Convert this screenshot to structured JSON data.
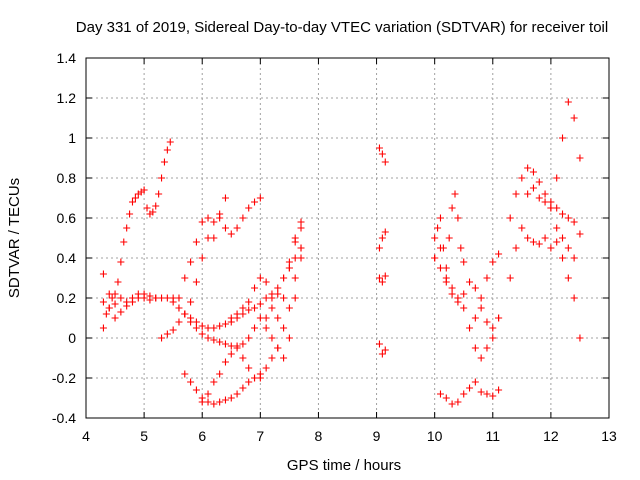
{
  "chart_data": {
    "type": "scatter",
    "title": "Day 331 of 2019, Sidereal Day-to-day VTEC variation (SDTVAR) for receiver toil",
    "xlabel": "GPS time / hours",
    "ylabel": "SDTVAR / TECUs",
    "xlim": [
      4,
      13
    ],
    "ylim": [
      -0.4,
      1.4
    ],
    "xticks": [
      "4",
      "5",
      "6",
      "7",
      "8",
      "9",
      "10",
      "11",
      "12",
      "13"
    ],
    "yticks": [
      "-0.4",
      "-0.2",
      "0",
      "0.2",
      "0.4",
      "0.6",
      "0.8",
      "1",
      "1.2",
      "1.4"
    ],
    "grid": true,
    "marker": "plus",
    "color": "#ff0000",
    "series": [
      {
        "x": [
          4.3,
          4.35,
          4.4,
          4.45,
          4.5,
          4.55,
          4.6,
          4.65,
          4.7,
          4.75,
          4.8,
          4.85,
          4.9,
          4.95,
          5.0,
          5.05,
          5.1,
          5.15,
          5.2,
          5.25,
          5.3,
          5.35,
          5.4,
          5.45
        ],
        "y": [
          0.05,
          0.12,
          0.15,
          0.2,
          0.22,
          0.28,
          0.38,
          0.48,
          0.55,
          0.62,
          0.68,
          0.7,
          0.72,
          0.73,
          0.74,
          0.65,
          0.62,
          0.63,
          0.66,
          0.72,
          0.8,
          0.88,
          0.94,
          0.98
        ]
      },
      {
        "x": [
          4.3,
          4.4,
          4.5,
          4.6,
          4.7,
          4.8,
          4.9,
          5.0,
          5.1,
          5.2,
          5.3,
          5.4,
          5.5,
          5.6,
          5.7,
          5.8,
          5.9,
          6.0,
          6.1,
          6.2,
          6.3,
          6.4,
          6.5,
          6.6,
          6.7,
          6.8,
          6.9,
          7.0,
          7.1,
          7.2,
          7.3,
          7.4,
          7.5,
          7.6,
          7.7
        ],
        "y": [
          0.18,
          0.15,
          0.17,
          0.2,
          0.18,
          0.2,
          0.22,
          0.2,
          0.19,
          0.2,
          0.2,
          0.2,
          0.18,
          0.15,
          0.12,
          0.1,
          0.08,
          0.06,
          0.05,
          0.05,
          0.06,
          0.07,
          0.08,
          0.1,
          0.12,
          0.14,
          0.15,
          0.17,
          0.2,
          0.22,
          0.25,
          0.3,
          0.35,
          0.4,
          0.45
        ]
      },
      {
        "x": [
          4.3,
          4.4,
          4.5,
          4.6,
          4.7,
          4.8,
          4.9,
          5.0,
          5.1,
          5.2
        ],
        "y": [
          0.32,
          0.22,
          0.1,
          0.13,
          0.16,
          0.18,
          0.2,
          0.22,
          0.21,
          0.2
        ]
      },
      {
        "x": [
          5.3,
          5.4,
          5.5,
          5.6,
          5.7,
          5.8,
          5.9,
          6.0,
          6.1,
          6.2,
          6.3,
          6.4,
          6.5,
          6.6,
          6.7,
          6.8,
          6.9,
          7.0,
          7.1,
          7.2,
          7.3,
          7.4,
          7.5,
          7.6,
          7.7
        ],
        "y": [
          0.0,
          0.02,
          0.04,
          0.08,
          0.12,
          0.18,
          0.28,
          0.4,
          0.5,
          0.58,
          0.6,
          0.55,
          0.52,
          0.55,
          0.6,
          0.65,
          0.68,
          0.7,
          0.1,
          0.15,
          0.22,
          0.3,
          0.38,
          0.48,
          0.55
        ]
      },
      {
        "x": [
          5.6,
          5.7,
          5.8,
          5.9,
          6.0,
          6.1,
          6.2,
          6.3,
          6.4
        ],
        "y": [
          0.2,
          0.3,
          0.38,
          0.48,
          0.58,
          0.6,
          0.5,
          0.62,
          0.7
        ]
      },
      {
        "x": [
          5.7,
          5.8,
          5.9,
          6.0,
          6.1,
          6.2,
          6.3,
          6.4,
          6.5,
          6.6,
          6.7,
          6.8,
          6.9,
          7.0,
          7.1,
          7.2,
          7.3,
          7.4,
          7.5,
          7.6,
          7.7
        ],
        "y": [
          -0.18,
          -0.22,
          -0.26,
          -0.3,
          -0.32,
          -0.33,
          -0.32,
          -0.31,
          -0.3,
          -0.28,
          -0.25,
          -0.22,
          -0.2,
          -0.18,
          -0.15,
          -0.1,
          -0.05,
          0.05,
          0.15,
          0.3,
          0.45
        ]
      },
      {
        "x": [
          5.5,
          5.6,
          5.7,
          5.8,
          5.9,
          6.0,
          6.1,
          6.2,
          6.3,
          6.4,
          6.5,
          6.6,
          6.7,
          6.8,
          6.9,
          7.0,
          7.1,
          7.2,
          7.3,
          7.4,
          7.5,
          7.6,
          7.7
        ],
        "y": [
          0.2,
          0.15,
          0.12,
          0.08,
          0.05,
          0.02,
          0.0,
          -0.01,
          -0.02,
          -0.03,
          -0.04,
          -0.04,
          -0.03,
          0.0,
          0.05,
          0.1,
          0.05,
          0.0,
          -0.05,
          -0.1,
          0.0,
          0.2,
          0.4
        ]
      },
      {
        "x": [
          6.0,
          6.1,
          6.2,
          6.3,
          6.4,
          6.5,
          6.6,
          6.7,
          6.8,
          6.9,
          7.0
        ],
        "y": [
          -0.32,
          -0.28,
          -0.22,
          -0.18,
          -0.12,
          -0.08,
          -0.05,
          -0.1,
          -0.15,
          -0.2,
          -0.2
        ]
      },
      {
        "x": [
          6.5,
          6.6,
          6.7,
          6.8,
          6.9,
          7.0,
          7.1,
          7.2,
          7.3,
          7.4,
          7.5,
          7.6,
          7.7
        ],
        "y": [
          0.1,
          0.12,
          0.15,
          0.18,
          0.25,
          0.3,
          0.28,
          0.2,
          0.1,
          0.2,
          0.35,
          0.5,
          0.58
        ]
      },
      {
        "x": [
          9.05,
          9.1,
          9.15
        ],
        "y": [
          0.95,
          0.92,
          0.88
        ]
      },
      {
        "x": [
          9.05,
          9.1,
          9.15
        ],
        "y": [
          0.45,
          0.5,
          0.53
        ]
      },
      {
        "x": [
          9.05,
          9.1,
          9.15
        ],
        "y": [
          0.3,
          0.28,
          0.31
        ]
      },
      {
        "x": [
          9.05,
          9.1,
          9.15
        ],
        "y": [
          -0.03,
          -0.08,
          -0.06
        ]
      },
      {
        "x": [
          10.0,
          10.1,
          10.2,
          10.3,
          10.4,
          10.5,
          10.6,
          10.7,
          10.8,
          10.9,
          11.0,
          11.1
        ],
        "y": [
          0.5,
          0.45,
          0.3,
          0.25,
          0.2,
          0.15,
          0.05,
          -0.05,
          -0.1,
          -0.05,
          0.0,
          0.1
        ]
      },
      {
        "x": [
          10.0,
          10.1,
          10.2,
          10.3,
          10.4,
          10.5,
          10.6,
          10.7,
          10.8,
          10.9,
          11.0,
          11.1
        ],
        "y": [
          0.4,
          0.35,
          0.28,
          0.22,
          0.18,
          0.22,
          0.28,
          0.25,
          0.15,
          0.08,
          0.05,
          0.1
        ]
      },
      {
        "x": [
          10.0,
          10.05,
          10.1,
          10.15,
          10.2,
          10.25,
          10.3,
          10.35,
          10.4,
          10.45,
          10.5
        ],
        "y": [
          0.4,
          0.55,
          0.6,
          0.45,
          0.35,
          0.5,
          0.65,
          0.72,
          0.6,
          0.45,
          0.38
        ]
      },
      {
        "x": [
          10.1,
          10.2,
          10.3,
          10.4,
          10.5,
          10.6,
          10.7,
          10.8,
          10.9,
          11.0,
          11.1
        ],
        "y": [
          -0.28,
          -0.3,
          -0.33,
          -0.32,
          -0.28,
          -0.25,
          -0.22,
          -0.27,
          -0.28,
          -0.29,
          -0.26
        ]
      },
      {
        "x": [
          10.7,
          10.8,
          10.9,
          11.0,
          11.1
        ],
        "y": [
          0.1,
          0.2,
          0.3,
          0.38,
          0.42
        ]
      },
      {
        "x": [
          11.3,
          11.4,
          11.5,
          11.6,
          11.7,
          11.8,
          11.9,
          12.0,
          12.1,
          12.2,
          12.3,
          12.4,
          12.5
        ],
        "y": [
          0.6,
          0.72,
          0.8,
          0.85,
          0.83,
          0.78,
          0.72,
          0.68,
          0.65,
          0.62,
          0.6,
          0.58,
          0.52
        ]
      },
      {
        "x": [
          11.3,
          11.4,
          11.5,
          11.6,
          11.7,
          11.8,
          11.9,
          12.0,
          12.1,
          12.2,
          12.3,
          12.4
        ],
        "y": [
          0.3,
          0.45,
          0.55,
          0.5,
          0.48,
          0.47,
          0.5,
          0.45,
          0.48,
          0.5,
          0.45,
          0.4
        ]
      },
      {
        "x": [
          11.6,
          11.7,
          11.8,
          11.9,
          12.0,
          12.1,
          12.2,
          12.3,
          12.4,
          12.5
        ],
        "y": [
          0.72,
          0.75,
          0.7,
          0.68,
          0.65,
          0.8,
          1.0,
          1.18,
          1.1,
          0.9
        ]
      },
      {
        "x": [
          12.0,
          12.1,
          12.2,
          12.3,
          12.4,
          12.5
        ],
        "y": [
          0.65,
          0.55,
          0.4,
          0.3,
          0.2,
          0.0
        ]
      }
    ]
  }
}
